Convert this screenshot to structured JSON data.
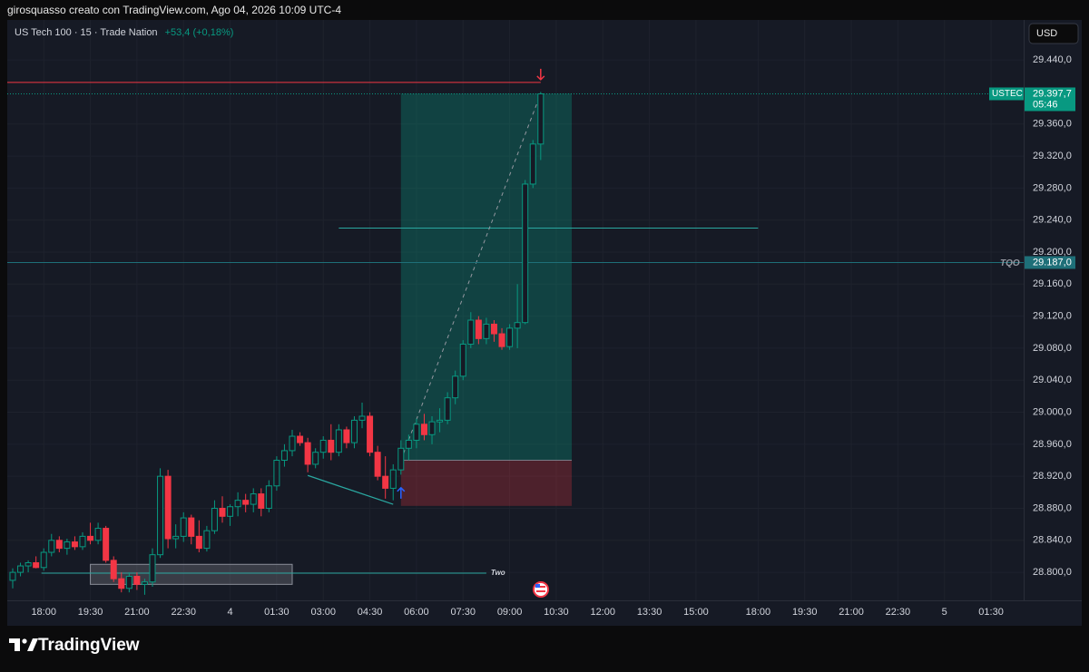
{
  "header": {
    "credit": "girosquasso creato con TradingView.com, Ago 04, 2026 10:09 UTC-4"
  },
  "footer": {
    "brand": "TradingView"
  },
  "chart_data": {
    "type": "candlestick",
    "title": "US Tech 100 · 15 · Trade Nation",
    "change": "+53,4 (+0,18%)",
    "currency": "USD",
    "up_color": "#089981",
    "down_color": "#f23645",
    "grid": true,
    "open": [
      28790,
      28800,
      28808,
      28812,
      28806,
      28825,
      28840,
      28830,
      28838,
      28832,
      28845,
      28840,
      28855,
      28815,
      28792,
      28780,
      28795,
      28785,
      28788,
      28822,
      28920,
      28842,
      28845,
      28868,
      28845,
      28830,
      28852,
      28880,
      28870,
      28882,
      28890,
      28885,
      28898,
      28880,
      28908,
      28940,
      28952,
      28970,
      28962,
      28935,
      28950,
      28965,
      28950,
      28978,
      28962,
      28990,
      28995,
      28950,
      28920,
      28905,
      28928,
      28955,
      28965,
      28985,
      28972,
      28988,
      28990,
      29018,
      29045,
      29085,
      29115,
      29092,
      29110,
      29098,
      29082,
      29105,
      29112,
      29285,
      29335
    ],
    "high": [
      28805,
      28812,
      28815,
      28820,
      28830,
      28848,
      28845,
      28842,
      28845,
      28850,
      28862,
      28862,
      28858,
      28820,
      28800,
      28800,
      28800,
      28792,
      28830,
      28930,
      28928,
      28860,
      28875,
      28872,
      28865,
      28858,
      28890,
      28895,
      28885,
      28900,
      28898,
      28905,
      28905,
      28915,
      28945,
      28960,
      28978,
      28975,
      28968,
      28955,
      28970,
      28985,
      28985,
      28982,
      28995,
      29012,
      29000,
      28958,
      28945,
      28935,
      28965,
      28972,
      28992,
      28998,
      28995,
      29005,
      29025,
      29052,
      29090,
      29125,
      29120,
      29118,
      29115,
      29105,
      29110,
      29160,
      29290,
      29340,
      29400
    ],
    "low": [
      28780,
      28795,
      28800,
      28805,
      28802,
      28820,
      28825,
      28822,
      28828,
      28828,
      28835,
      28835,
      28812,
      28788,
      28775,
      28775,
      28778,
      28772,
      28782,
      28818,
      28830,
      28830,
      28838,
      28835,
      28825,
      28826,
      28848,
      28862,
      28858,
      28870,
      28875,
      28875,
      28870,
      28875,
      28902,
      28932,
      28945,
      28958,
      28925,
      28930,
      28942,
      28940,
      28945,
      28955,
      28955,
      28980,
      28945,
      28915,
      28892,
      28890,
      28922,
      28940,
      28955,
      28965,
      28960,
      28975,
      28985,
      29010,
      29040,
      29080,
      29085,
      29085,
      29088,
      29078,
      29078,
      29080,
      29110,
      29280,
      29315
    ],
    "close": [
      28800,
      28808,
      28812,
      28806,
      28825,
      28840,
      28830,
      28838,
      28832,
      28845,
      28840,
      28855,
      28815,
      28792,
      28780,
      28795,
      28785,
      28788,
      28822,
      28920,
      28842,
      28845,
      28868,
      28845,
      28830,
      28852,
      28880,
      28870,
      28882,
      28890,
      28885,
      28898,
      28880,
      28908,
      28940,
      28952,
      28970,
      28962,
      28935,
      28950,
      28965,
      28950,
      28978,
      28962,
      28990,
      28995,
      28950,
      28920,
      28905,
      28928,
      28955,
      28965,
      28985,
      28972,
      28988,
      28990,
      29018,
      29045,
      29085,
      29115,
      29092,
      29110,
      29098,
      29082,
      29105,
      29112,
      29285,
      29335,
      29397.7
    ],
    "xlim": [
      -0.7,
      130.2
    ],
    "xticks": [
      {
        "value": 4,
        "label": "18:00"
      },
      {
        "value": 10,
        "label": "19:30"
      },
      {
        "value": 16,
        "label": "21:00"
      },
      {
        "value": 22,
        "label": "22:30"
      },
      {
        "value": 28,
        "label": "4"
      },
      {
        "value": 34,
        "label": "01:30"
      },
      {
        "value": 40,
        "label": "03:00"
      },
      {
        "value": 46,
        "label": "04:30"
      },
      {
        "value": 52,
        "label": "06:00"
      },
      {
        "value": 58,
        "label": "07:30"
      },
      {
        "value": 64,
        "label": "09:00"
      },
      {
        "value": 70,
        "label": "10:30"
      },
      {
        "value": 76,
        "label": "12:00"
      },
      {
        "value": 82,
        "label": "13:30"
      },
      {
        "value": 88,
        "label": "15:00"
      },
      {
        "value": 96,
        "label": "18:00"
      },
      {
        "value": 102,
        "label": "19:30"
      },
      {
        "value": 108,
        "label": "21:00"
      },
      {
        "value": 114,
        "label": "22:30"
      },
      {
        "value": 120,
        "label": "5"
      },
      {
        "value": 126,
        "label": "01:30"
      }
    ],
    "ylim": [
      28765,
      29490
    ],
    "yticks": [
      {
        "value": 29440,
        "label": "29.440,0"
      },
      {
        "value": 29360,
        "label": "29.360,0"
      },
      {
        "value": 29320,
        "label": "29.320,0"
      },
      {
        "value": 29280,
        "label": "29.280,0"
      },
      {
        "value": 29240,
        "label": "29.240,0"
      },
      {
        "value": 29200,
        "label": "29.200,0"
      },
      {
        "value": 29160,
        "label": "29.160,0"
      },
      {
        "value": 29120,
        "label": "29.120,0"
      },
      {
        "value": 29080,
        "label": "29.080,0"
      },
      {
        "value": 29040,
        "label": "29.040,0"
      },
      {
        "value": 29000,
        "label": "29.000,0"
      },
      {
        "value": 28960,
        "label": "28.960,0"
      },
      {
        "value": 28920,
        "label": "28.920,0"
      },
      {
        "value": 28880,
        "label": "28.880,0"
      },
      {
        "value": 28840,
        "label": "28.840,0"
      },
      {
        "value": 28800,
        "label": "28.800,0"
      }
    ],
    "price_labels": [
      {
        "name": "USTEC",
        "value": 29397.7,
        "label": "29.397,7",
        "countdown": "05:46",
        "color": "#089981"
      },
      {
        "name": "TQO",
        "value": 29187,
        "label": "29.187,0",
        "color": "#1e6f78"
      }
    ],
    "position": {
      "start": 50,
      "end": 72,
      "entry": 28940,
      "target": 29398,
      "stop": 28883
    },
    "hlines": [
      {
        "value": 29412,
        "start": -0.7,
        "end": 68,
        "color": "#f23645"
      },
      {
        "value": 29230,
        "start": 42,
        "end": 96,
        "color": "#2aa7a0"
      },
      {
        "value": 28799,
        "start": 3.7,
        "end": 61,
        "color": "#2aa7a0",
        "label": "Two"
      }
    ],
    "zone": {
      "start": 10,
      "end": 36,
      "top": 28810,
      "bottom": 28785
    },
    "trendline": {
      "start": 38,
      "end": 49,
      "from": 28921,
      "to": 28885
    }
  }
}
